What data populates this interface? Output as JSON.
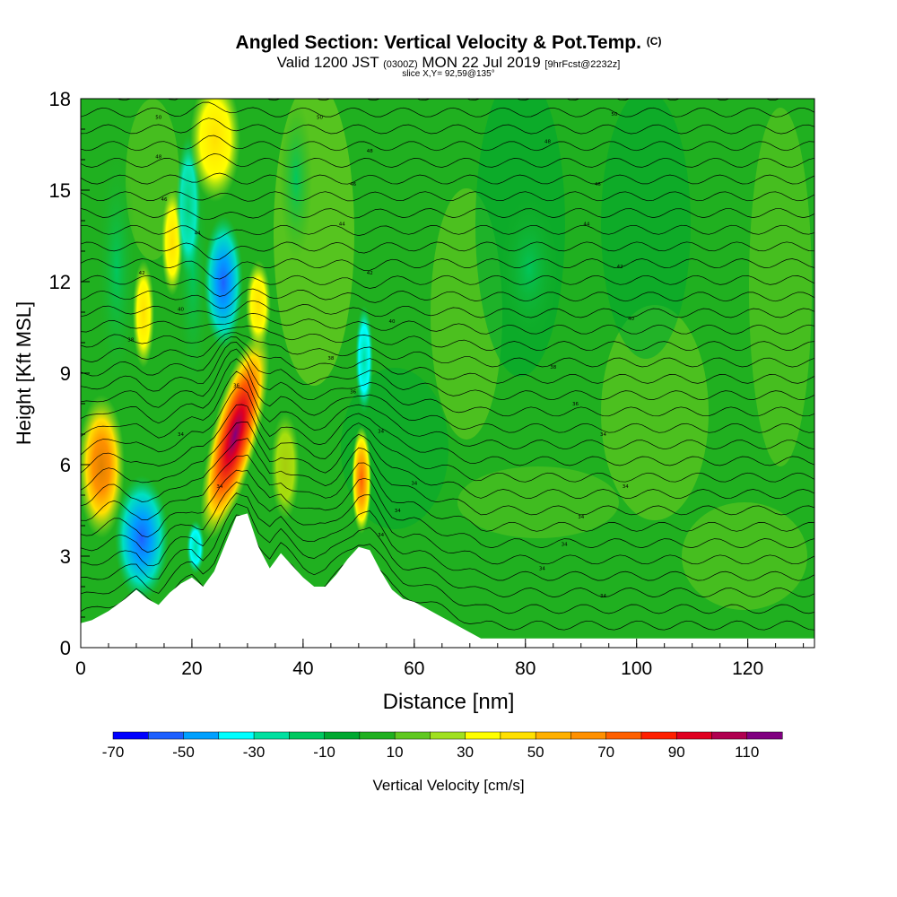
{
  "title": {
    "main": "Angled Section: Vertical Velocity & Pot.Temp.",
    "main_suffix": "(C)",
    "valid_prefix": "Valid 1200 JST",
    "valid_zulu": "(0300Z)",
    "valid_date": "MON 22 Jul 2019",
    "valid_fcst": "[9hrFcst@2232z]",
    "slice": "slice X,Y= 92,59@135°"
  },
  "chart_data": {
    "type": "heatmap",
    "xlabel": "Distance [nm]",
    "ylabel": "Height [Kft MSL]",
    "xlim": [
      0,
      132
    ],
    "ylim": [
      0,
      18
    ],
    "xticks": [
      "0",
      "20",
      "40",
      "60",
      "80",
      "100",
      "120"
    ],
    "yticks": [
      "0",
      "3",
      "6",
      "9",
      "12",
      "15",
      "18"
    ],
    "colorbar": {
      "label": "Vertical Velocity [cm/s]",
      "tick_labels": [
        "-70",
        "-50",
        "-30",
        "-10",
        "10",
        "30",
        "50",
        "70",
        "90",
        "110"
      ],
      "bins": [
        -70,
        -60,
        -50,
        -40,
        -30,
        -20,
        -10,
        0,
        10,
        20,
        30,
        40,
        50,
        60,
        70,
        80,
        90,
        100,
        110,
        120
      ],
      "colors": [
        "#0000ff",
        "#1e60ff",
        "#00a0ff",
        "#00ffff",
        "#00e0a0",
        "#00c860",
        "#00a830",
        "#20b020",
        "#60c820",
        "#a0e020",
        "#ffff00",
        "#ffe000",
        "#ffb000",
        "#ff9000",
        "#ff6000",
        "#ff2000",
        "#e00020",
        "#b00050",
        "#800080"
      ]
    },
    "terrain_kft": [
      [
        0,
        0.8
      ],
      [
        2,
        0.9
      ],
      [
        5,
        1.2
      ],
      [
        8,
        1.6
      ],
      [
        10,
        1.9
      ],
      [
        12,
        1.6
      ],
      [
        14,
        1.4
      ],
      [
        16,
        1.8
      ],
      [
        18,
        2.1
      ],
      [
        20,
        2.3
      ],
      [
        22,
        2.0
      ],
      [
        24,
        2.5
      ],
      [
        26,
        3.4
      ],
      [
        28,
        4.3
      ],
      [
        30,
        4.4
      ],
      [
        32,
        3.3
      ],
      [
        34,
        2.6
      ],
      [
        36,
        3.1
      ],
      [
        38,
        2.7
      ],
      [
        40,
        2.3
      ],
      [
        42,
        2.0
      ],
      [
        44,
        2.0
      ],
      [
        46,
        2.4
      ],
      [
        48,
        2.9
      ],
      [
        50,
        3.3
      ],
      [
        52,
        3.2
      ],
      [
        54,
        2.5
      ],
      [
        56,
        1.9
      ],
      [
        58,
        1.6
      ],
      [
        60,
        1.5
      ],
      [
        62,
        1.3
      ],
      [
        64,
        1.1
      ],
      [
        66,
        0.9
      ],
      [
        68,
        0.7
      ],
      [
        70,
        0.5
      ],
      [
        72,
        0.3
      ],
      [
        132,
        0.3
      ]
    ],
    "updrafts": [
      {
        "x": 6,
        "y": 6,
        "peak_cms": 50
      },
      {
        "x": 27,
        "y": 7,
        "peak_cms": 110
      },
      {
        "x": 51,
        "y": 5.6,
        "peak_cms": 60
      },
      {
        "x": 24,
        "y": 17,
        "peak_cms": 30
      }
    ],
    "downdrafts": [
      {
        "x": 11,
        "y": 3.5,
        "peak_cms": -60
      },
      {
        "x": 25,
        "y": 11.8,
        "peak_cms": -55
      },
      {
        "x": 51,
        "y": 9.5,
        "peak_cms": -35
      }
    ],
    "theta_levels_c": [
      34,
      36,
      38,
      40,
      42,
      44,
      46,
      48,
      50
    ],
    "theta_labels": [
      "34",
      "36",
      "38",
      "40",
      "42",
      "44",
      "46",
      "48",
      "50"
    ]
  }
}
